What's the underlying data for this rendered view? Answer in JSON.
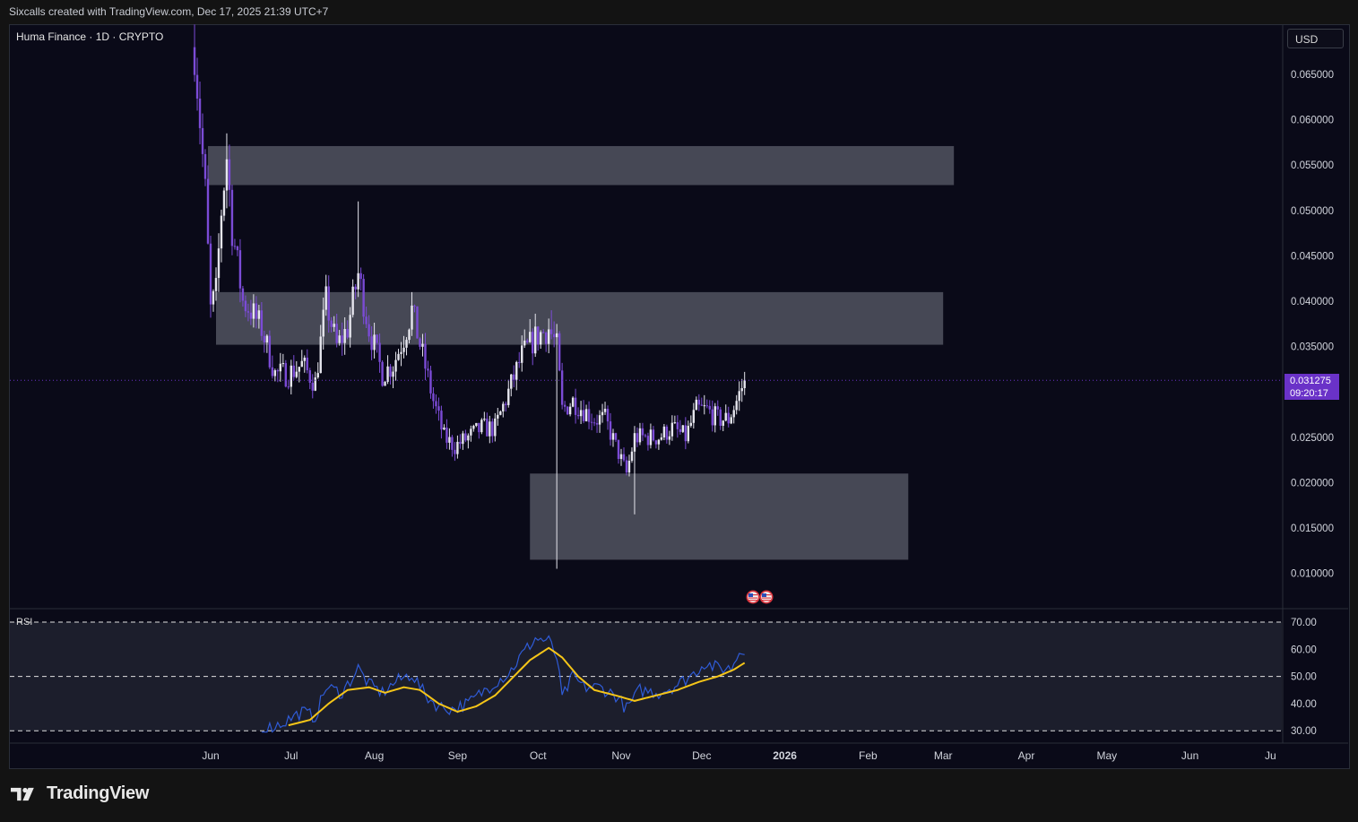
{
  "header": {
    "text": "Sixcalls created with TradingView.com, Dec 17, 2025 21:39 UTC+7"
  },
  "chart": {
    "title": "Huma Finance · 1D · CRYPTO",
    "currency": "USD"
  },
  "price_badge": {
    "price": "0.031275",
    "countdown": "09:20:17"
  },
  "rsi": {
    "label": "RSI"
  },
  "footer": {
    "brand": "TradingView"
  },
  "colors": {
    "up": "#e6e6ee",
    "down": "#7b4bd6",
    "zone": "#4a4c58",
    "rsi_line": "#2f5bd6",
    "rsi_ma": "#f5c518",
    "badge": "#6a32c8"
  },
  "icons": [
    "us-flag-event-icon",
    "us-flag-event-icon",
    "tradingview-logo-icon"
  ],
  "chart_data": [
    {
      "type": "candlestick",
      "title": "Huma Finance · 1D · CRYPTO",
      "y_ticks": [
        "0.065000",
        "0.060000",
        "0.055000",
        "0.050000",
        "0.045000",
        "0.040000",
        "0.035000",
        "0.030000",
        "0.025000",
        "0.020000",
        "0.015000",
        "0.010000"
      ],
      "x_ticks": [
        "Jun",
        "Jul",
        "Aug",
        "Sep",
        "Oct",
        "Nov",
        "Dec",
        "2026",
        "Feb",
        "Mar",
        "Apr",
        "May",
        "Jun",
        "Ju"
      ],
      "ylim": [
        0.0055,
        0.0695
      ],
      "last_price": 0.031275,
      "closes": [
        {
          "date": "2025-05-26",
          "close": 0.068
        },
        {
          "date": "2025-05-28",
          "close": 0.06
        },
        {
          "date": "2025-05-30",
          "close": 0.052
        },
        {
          "date": "2025-06-01",
          "close": 0.039
        },
        {
          "date": "2025-06-03",
          "close": 0.041
        },
        {
          "date": "2025-06-05",
          "close": 0.05
        },
        {
          "date": "2025-06-07",
          "close": 0.056
        },
        {
          "date": "2025-06-09",
          "close": 0.048
        },
        {
          "date": "2025-06-11",
          "close": 0.044
        },
        {
          "date": "2025-06-13",
          "close": 0.04
        },
        {
          "date": "2025-06-16",
          "close": 0.039
        },
        {
          "date": "2025-06-20",
          "close": 0.037
        },
        {
          "date": "2025-06-25",
          "close": 0.032
        },
        {
          "date": "2025-06-30",
          "close": 0.032
        },
        {
          "date": "2025-07-05",
          "close": 0.033
        },
        {
          "date": "2025-07-10",
          "close": 0.031
        },
        {
          "date": "2025-07-14",
          "close": 0.04
        },
        {
          "date": "2025-07-18",
          "close": 0.035
        },
        {
          "date": "2025-07-22",
          "close": 0.037
        },
        {
          "date": "2025-07-26",
          "close": 0.043
        },
        {
          "date": "2025-07-30",
          "close": 0.037
        },
        {
          "date": "2025-08-04",
          "close": 0.032
        },
        {
          "date": "2025-08-08",
          "close": 0.033
        },
        {
          "date": "2025-08-12",
          "close": 0.036
        },
        {
          "date": "2025-08-15",
          "close": 0.039
        },
        {
          "date": "2025-08-19",
          "close": 0.034
        },
        {
          "date": "2025-08-23",
          "close": 0.029
        },
        {
          "date": "2025-08-27",
          "close": 0.025
        },
        {
          "date": "2025-08-31",
          "close": 0.024
        },
        {
          "date": "2025-09-05",
          "close": 0.025
        },
        {
          "date": "2025-09-10",
          "close": 0.026
        },
        {
          "date": "2025-09-15",
          "close": 0.026
        },
        {
          "date": "2025-09-20",
          "close": 0.03
        },
        {
          "date": "2025-09-25",
          "close": 0.034
        },
        {
          "date": "2025-09-30",
          "close": 0.036
        },
        {
          "date": "2025-10-05",
          "close": 0.037
        },
        {
          "date": "2025-10-08",
          "close": 0.035
        },
        {
          "date": "2025-10-10",
          "close": 0.028
        },
        {
          "date": "2025-10-14",
          "close": 0.029
        },
        {
          "date": "2025-10-18",
          "close": 0.028
        },
        {
          "date": "2025-10-22",
          "close": 0.027
        },
        {
          "date": "2025-10-26",
          "close": 0.027
        },
        {
          "date": "2025-10-30",
          "close": 0.024
        },
        {
          "date": "2025-11-03",
          "close": 0.021
        },
        {
          "date": "2025-11-06",
          "close": 0.025
        },
        {
          "date": "2025-11-10",
          "close": 0.025
        },
        {
          "date": "2025-11-15",
          "close": 0.025
        },
        {
          "date": "2025-11-20",
          "close": 0.026
        },
        {
          "date": "2025-11-25",
          "close": 0.025
        },
        {
          "date": "2025-11-29",
          "close": 0.028
        },
        {
          "date": "2025-12-03",
          "close": 0.028
        },
        {
          "date": "2025-12-07",
          "close": 0.027
        },
        {
          "date": "2025-12-11",
          "close": 0.027
        },
        {
          "date": "2025-12-14",
          "close": 0.029
        },
        {
          "date": "2025-12-17",
          "close": 0.031275
        }
      ],
      "wicks": [
        {
          "date": "2025-06-07",
          "high": 0.0585
        },
        {
          "date": "2025-07-26",
          "high": 0.051
        },
        {
          "date": "2025-10-08",
          "low": 0.0105
        },
        {
          "date": "2025-11-06",
          "low": 0.0165
        },
        {
          "date": "2025-10-06",
          "high": 0.039
        },
        {
          "date": "2025-08-15",
          "high": 0.041
        }
      ],
      "zones": [
        {
          "from": "2025-05-31",
          "to": "2026-03-05",
          "low": 0.0528,
          "high": 0.0571
        },
        {
          "from": "2025-06-03",
          "to": "2026-03-01",
          "low": 0.0352,
          "high": 0.041
        },
        {
          "from": "2025-09-28",
          "to": "2026-02-16",
          "low": 0.0115,
          "high": 0.021
        }
      ]
    },
    {
      "type": "line",
      "title": "RSI",
      "y_ticks": [
        "70.00",
        "60.00",
        "50.00",
        "40.00",
        "30.00"
      ],
      "ylim": [
        28.5,
        72
      ],
      "levels": [
        70,
        50,
        30
      ],
      "series": [
        {
          "values": [
            {
              "date": "2025-06-20",
              "y": 30
            },
            {
              "date": "2025-06-28",
              "y": 33
            },
            {
              "date": "2025-07-05",
              "y": 37
            },
            {
              "date": "2025-07-10",
              "y": 35
            },
            {
              "date": "2025-07-14",
              "y": 46
            },
            {
              "date": "2025-07-20",
              "y": 44
            },
            {
              "date": "2025-07-26",
              "y": 53
            },
            {
              "date": "2025-07-30",
              "y": 47
            },
            {
              "date": "2025-08-04",
              "y": 44
            },
            {
              "date": "2025-08-09",
              "y": 48
            },
            {
              "date": "2025-08-15",
              "y": 51
            },
            {
              "date": "2025-08-20",
              "y": 43
            },
            {
              "date": "2025-08-25",
              "y": 39
            },
            {
              "date": "2025-08-30",
              "y": 38
            },
            {
              "date": "2025-09-05",
              "y": 40
            },
            {
              "date": "2025-09-10",
              "y": 44
            },
            {
              "date": "2025-09-15",
              "y": 48
            },
            {
              "date": "2025-09-20",
              "y": 51
            },
            {
              "date": "2025-09-25",
              "y": 58
            },
            {
              "date": "2025-09-30",
              "y": 64
            },
            {
              "date": "2025-10-05",
              "y": 63
            },
            {
              "date": "2025-10-08",
              "y": 57
            },
            {
              "date": "2025-10-10",
              "y": 42
            },
            {
              "date": "2025-10-14",
              "y": 50
            },
            {
              "date": "2025-10-18",
              "y": 46
            },
            {
              "date": "2025-10-24",
              "y": 46
            },
            {
              "date": "2025-10-30",
              "y": 43
            },
            {
              "date": "2025-11-03",
              "y": 38
            },
            {
              "date": "2025-11-08",
              "y": 45
            },
            {
              "date": "2025-11-15",
              "y": 44
            },
            {
              "date": "2025-11-22",
              "y": 47
            },
            {
              "date": "2025-11-28",
              "y": 51
            },
            {
              "date": "2025-12-02",
              "y": 55
            },
            {
              "date": "2025-12-07",
              "y": 53
            },
            {
              "date": "2025-12-12",
              "y": 53
            },
            {
              "date": "2025-12-15",
              "y": 59
            },
            {
              "date": "2025-12-17",
              "y": 60.5
            }
          ]
        },
        {
          "values": [
            {
              "date": "2025-06-30",
              "y": 32
            },
            {
              "date": "2025-07-08",
              "y": 34
            },
            {
              "date": "2025-07-15",
              "y": 40
            },
            {
              "date": "2025-07-22",
              "y": 45
            },
            {
              "date": "2025-07-30",
              "y": 46
            },
            {
              "date": "2025-08-05",
              "y": 44
            },
            {
              "date": "2025-08-12",
              "y": 46
            },
            {
              "date": "2025-08-18",
              "y": 45
            },
            {
              "date": "2025-08-25",
              "y": 40
            },
            {
              "date": "2025-09-01",
              "y": 37
            },
            {
              "date": "2025-09-08",
              "y": 39
            },
            {
              "date": "2025-09-15",
              "y": 43
            },
            {
              "date": "2025-09-22",
              "y": 50
            },
            {
              "date": "2025-09-28",
              "y": 56
            },
            {
              "date": "2025-10-05",
              "y": 60.5
            },
            {
              "date": "2025-10-10",
              "y": 57
            },
            {
              "date": "2025-10-16",
              "y": 50
            },
            {
              "date": "2025-10-22",
              "y": 45
            },
            {
              "date": "2025-10-30",
              "y": 43
            },
            {
              "date": "2025-11-06",
              "y": 41
            },
            {
              "date": "2025-11-14",
              "y": 43
            },
            {
              "date": "2025-11-22",
              "y": 45
            },
            {
              "date": "2025-11-30",
              "y": 48
            },
            {
              "date": "2025-12-07",
              "y": 50
            },
            {
              "date": "2025-12-13",
              "y": 52.5
            },
            {
              "date": "2025-12-17",
              "y": 55
            }
          ]
        }
      ]
    }
  ]
}
